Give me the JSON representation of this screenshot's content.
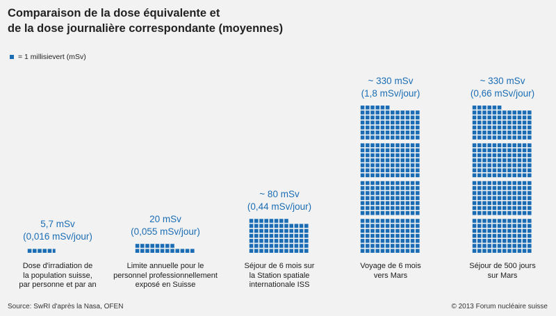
{
  "title_lines": [
    "Comparaison de la dose équivalente et",
    "de la dose journalière correspondante (moyennes)"
  ],
  "legend_label": "= 1 millisievert (mSv)",
  "source": "Source: SwRI d'après la Nasa, OFEN",
  "copyright": "© 2013 Forum nucléaire suisse",
  "colors": {
    "accent": "#1a6db5",
    "background": "#f2f2f2",
    "text": "#1a1a1a"
  },
  "chart_data": {
    "type": "bar",
    "unit": "mSv",
    "categories": [
      [
        "Dose d'irradiation de",
        "la population suisse,",
        "par personne et par an"
      ],
      [
        "Limite annuelle pour le",
        "personnel professionnellement",
        "exposé en Suisse"
      ],
      [
        "Séjour de 6 mois sur",
        "la Station spatiale",
        "internationale ISS"
      ],
      [
        "Voyage de 6 mois",
        "vers Mars"
      ],
      [
        "Séjour de 500 jours",
        "sur Mars"
      ]
    ],
    "values": [
      5.7,
      20,
      80,
      330,
      330
    ],
    "value_labels": [
      [
        "5,7 mSv",
        "(0,016 mSv/jour)"
      ],
      [
        "20 mSv",
        "(0,055 mSv/jour)"
      ],
      [
        "~ 80 mSv",
        "(0,44 mSv/jour)"
      ],
      [
        "~ 330 mSv",
        "(1,8 mSv/jour)"
      ],
      [
        "~ 330 mSv",
        "(0,66 mSv/jour)"
      ]
    ]
  }
}
